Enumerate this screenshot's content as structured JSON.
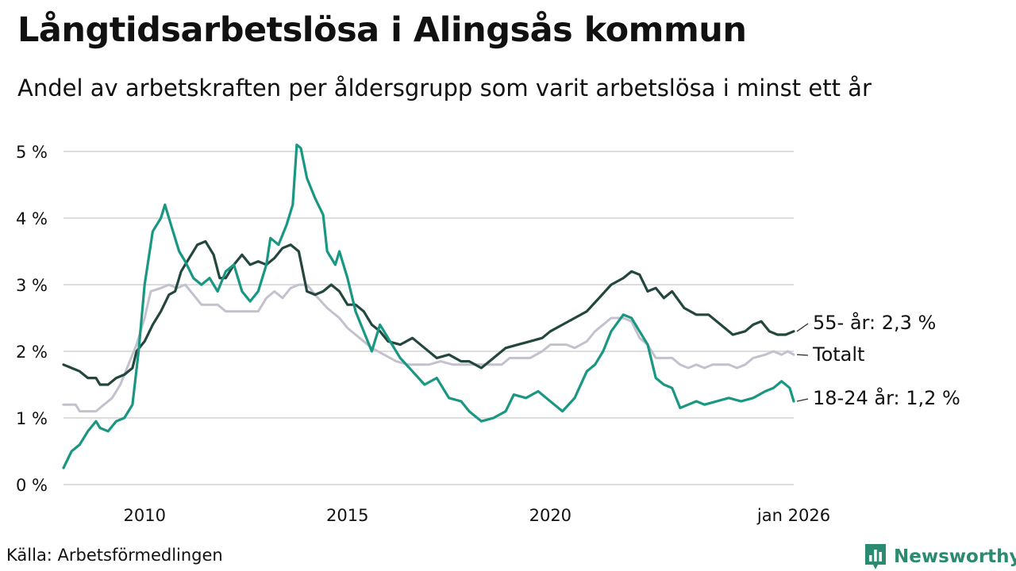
{
  "title": "Långtidsarbetslösa i Alingsås kommun",
  "subtitle": "Andel av arbetskraften per åldersgrupp som varit arbetslösa i minst ett år",
  "source": "Källa: Arbetsförmedlingen",
  "brand": "Newsworthy",
  "colors": {
    "youth": "#1a9783",
    "senior": "#23473f",
    "total": "#c3c1cd",
    "grid": "#dddddd",
    "brand": "#2a8a72"
  },
  "chart_data": {
    "type": "line",
    "title": "Långtidsarbetslösa i Alingsås kommun",
    "xlabel": "",
    "ylabel": "",
    "xlim": [
      2008.0,
      2026.0
    ],
    "ylim": [
      0,
      5.2
    ],
    "grid": true,
    "y_ticks": [
      {
        "value": 0,
        "label": "0 %"
      },
      {
        "value": 1,
        "label": "1 %"
      },
      {
        "value": 2,
        "label": "2 %"
      },
      {
        "value": 3,
        "label": "3 %"
      },
      {
        "value": 4,
        "label": "4 %"
      },
      {
        "value": 5,
        "label": "5 %"
      }
    ],
    "x_ticks": [
      {
        "value": 2010,
        "label": "2010"
      },
      {
        "value": 2015,
        "label": "2015"
      },
      {
        "value": 2020,
        "label": "2020"
      },
      {
        "value": 2026,
        "label": "jan 2026"
      }
    ],
    "series": [
      {
        "name": "Totalt",
        "label": "Totalt",
        "color": "#c3c1cd",
        "points": [
          [
            2008.0,
            1.2
          ],
          [
            2008.3,
            1.2
          ],
          [
            2008.4,
            1.1
          ],
          [
            2008.8,
            1.1
          ],
          [
            2009.0,
            1.2
          ],
          [
            2009.2,
            1.3
          ],
          [
            2009.4,
            1.5
          ],
          [
            2009.6,
            1.8
          ],
          [
            2009.8,
            2.1
          ],
          [
            2010.0,
            2.5
          ],
          [
            2010.15,
            2.9
          ],
          [
            2010.4,
            2.95
          ],
          [
            2010.6,
            3.0
          ],
          [
            2010.8,
            2.95
          ],
          [
            2011.0,
            3.0
          ],
          [
            2011.2,
            2.85
          ],
          [
            2011.4,
            2.7
          ],
          [
            2011.8,
            2.7
          ],
          [
            2012.0,
            2.6
          ],
          [
            2012.5,
            2.6
          ],
          [
            2012.8,
            2.6
          ],
          [
            2013.0,
            2.8
          ],
          [
            2013.2,
            2.9
          ],
          [
            2013.4,
            2.8
          ],
          [
            2013.6,
            2.95
          ],
          [
            2013.8,
            3.0
          ],
          [
            2014.0,
            3.0
          ],
          [
            2014.2,
            2.85
          ],
          [
            2014.5,
            2.65
          ],
          [
            2014.8,
            2.5
          ],
          [
            2015.0,
            2.35
          ],
          [
            2015.3,
            2.2
          ],
          [
            2015.6,
            2.05
          ],
          [
            2015.9,
            1.95
          ],
          [
            2016.2,
            1.85
          ],
          [
            2016.5,
            1.8
          ],
          [
            2017.0,
            1.8
          ],
          [
            2017.3,
            1.85
          ],
          [
            2017.6,
            1.8
          ],
          [
            2018.0,
            1.8
          ],
          [
            2018.5,
            1.8
          ],
          [
            2018.8,
            1.8
          ],
          [
            2019.0,
            1.9
          ],
          [
            2019.5,
            1.9
          ],
          [
            2019.8,
            2.0
          ],
          [
            2020.0,
            2.1
          ],
          [
            2020.4,
            2.1
          ],
          [
            2020.6,
            2.05
          ],
          [
            2020.9,
            2.15
          ],
          [
            2021.1,
            2.3
          ],
          [
            2021.3,
            2.4
          ],
          [
            2021.5,
            2.5
          ],
          [
            2021.8,
            2.5
          ],
          [
            2022.0,
            2.45
          ],
          [
            2022.2,
            2.2
          ],
          [
            2022.4,
            2.1
          ],
          [
            2022.6,
            1.9
          ],
          [
            2023.0,
            1.9
          ],
          [
            2023.2,
            1.8
          ],
          [
            2023.4,
            1.75
          ],
          [
            2023.6,
            1.8
          ],
          [
            2023.8,
            1.75
          ],
          [
            2024.0,
            1.8
          ],
          [
            2024.4,
            1.8
          ],
          [
            2024.6,
            1.75
          ],
          [
            2024.8,
            1.8
          ],
          [
            2025.0,
            1.9
          ],
          [
            2025.3,
            1.95
          ],
          [
            2025.5,
            2.0
          ],
          [
            2025.7,
            1.95
          ],
          [
            2025.85,
            2.0
          ],
          [
            2026.0,
            1.95
          ]
        ]
      },
      {
        "name": "55- år",
        "label": "55- år: 2,3 %",
        "color": "#23473f",
        "points": [
          [
            2008.0,
            1.8
          ],
          [
            2008.2,
            1.75
          ],
          [
            2008.4,
            1.7
          ],
          [
            2008.6,
            1.6
          ],
          [
            2008.8,
            1.6
          ],
          [
            2008.9,
            1.5
          ],
          [
            2009.1,
            1.5
          ],
          [
            2009.3,
            1.6
          ],
          [
            2009.5,
            1.65
          ],
          [
            2009.7,
            1.75
          ],
          [
            2009.8,
            2.0
          ],
          [
            2010.0,
            2.15
          ],
          [
            2010.2,
            2.4
          ],
          [
            2010.4,
            2.6
          ],
          [
            2010.6,
            2.85
          ],
          [
            2010.75,
            2.9
          ],
          [
            2010.9,
            3.2
          ],
          [
            2011.1,
            3.4
          ],
          [
            2011.3,
            3.6
          ],
          [
            2011.5,
            3.65
          ],
          [
            2011.7,
            3.45
          ],
          [
            2011.85,
            3.1
          ],
          [
            2012.0,
            3.1
          ],
          [
            2012.2,
            3.3
          ],
          [
            2012.4,
            3.45
          ],
          [
            2012.6,
            3.3
          ],
          [
            2012.8,
            3.35
          ],
          [
            2013.0,
            3.3
          ],
          [
            2013.2,
            3.4
          ],
          [
            2013.4,
            3.55
          ],
          [
            2013.6,
            3.6
          ],
          [
            2013.8,
            3.5
          ],
          [
            2014.0,
            2.9
          ],
          [
            2014.2,
            2.85
          ],
          [
            2014.4,
            2.9
          ],
          [
            2014.6,
            3.0
          ],
          [
            2014.8,
            2.9
          ],
          [
            2015.0,
            2.7
          ],
          [
            2015.2,
            2.7
          ],
          [
            2015.4,
            2.6
          ],
          [
            2015.6,
            2.4
          ],
          [
            2015.8,
            2.3
          ],
          [
            2016.0,
            2.15
          ],
          [
            2016.3,
            2.1
          ],
          [
            2016.6,
            2.2
          ],
          [
            2016.9,
            2.05
          ],
          [
            2017.2,
            1.9
          ],
          [
            2017.5,
            1.95
          ],
          [
            2017.8,
            1.85
          ],
          [
            2018.0,
            1.85
          ],
          [
            2018.3,
            1.75
          ],
          [
            2018.6,
            1.9
          ],
          [
            2018.9,
            2.05
          ],
          [
            2019.2,
            2.1
          ],
          [
            2019.5,
            2.15
          ],
          [
            2019.8,
            2.2
          ],
          [
            2020.0,
            2.3
          ],
          [
            2020.3,
            2.4
          ],
          [
            2020.6,
            2.5
          ],
          [
            2020.9,
            2.6
          ],
          [
            2021.2,
            2.8
          ],
          [
            2021.5,
            3.0
          ],
          [
            2021.8,
            3.1
          ],
          [
            2022.0,
            3.2
          ],
          [
            2022.2,
            3.15
          ],
          [
            2022.4,
            2.9
          ],
          [
            2022.6,
            2.95
          ],
          [
            2022.8,
            2.8
          ],
          [
            2023.0,
            2.9
          ],
          [
            2023.3,
            2.65
          ],
          [
            2023.6,
            2.55
          ],
          [
            2023.9,
            2.55
          ],
          [
            2024.2,
            2.4
          ],
          [
            2024.5,
            2.25
          ],
          [
            2024.8,
            2.3
          ],
          [
            2025.0,
            2.4
          ],
          [
            2025.2,
            2.45
          ],
          [
            2025.4,
            2.3
          ],
          [
            2025.6,
            2.25
          ],
          [
            2025.8,
            2.25
          ],
          [
            2026.0,
            2.3
          ]
        ]
      },
      {
        "name": "18-24 år",
        "label": "18-24 år: 1,2 %",
        "color": "#1a9783",
        "points": [
          [
            2008.0,
            0.25
          ],
          [
            2008.2,
            0.5
          ],
          [
            2008.4,
            0.6
          ],
          [
            2008.6,
            0.8
          ],
          [
            2008.8,
            0.95
          ],
          [
            2008.9,
            0.85
          ],
          [
            2009.1,
            0.8
          ],
          [
            2009.3,
            0.95
          ],
          [
            2009.5,
            1.0
          ],
          [
            2009.7,
            1.2
          ],
          [
            2009.85,
            2.0
          ],
          [
            2010.0,
            3.0
          ],
          [
            2010.2,
            3.8
          ],
          [
            2010.4,
            4.0
          ],
          [
            2010.5,
            4.2
          ],
          [
            2010.65,
            3.9
          ],
          [
            2010.85,
            3.5
          ],
          [
            2011.0,
            3.35
          ],
          [
            2011.2,
            3.1
          ],
          [
            2011.4,
            3.0
          ],
          [
            2011.6,
            3.1
          ],
          [
            2011.8,
            2.9
          ],
          [
            2012.0,
            3.2
          ],
          [
            2012.2,
            3.3
          ],
          [
            2012.4,
            2.9
          ],
          [
            2012.6,
            2.75
          ],
          [
            2012.8,
            2.9
          ],
          [
            2013.0,
            3.3
          ],
          [
            2013.1,
            3.7
          ],
          [
            2013.3,
            3.6
          ],
          [
            2013.5,
            3.9
          ],
          [
            2013.65,
            4.2
          ],
          [
            2013.75,
            5.1
          ],
          [
            2013.85,
            5.05
          ],
          [
            2014.0,
            4.6
          ],
          [
            2014.2,
            4.3
          ],
          [
            2014.4,
            4.05
          ],
          [
            2014.5,
            3.5
          ],
          [
            2014.7,
            3.3
          ],
          [
            2014.8,
            3.5
          ],
          [
            2015.0,
            3.1
          ],
          [
            2015.2,
            2.6
          ],
          [
            2015.4,
            2.3
          ],
          [
            2015.6,
            2.0
          ],
          [
            2015.8,
            2.4
          ],
          [
            2016.0,
            2.2
          ],
          [
            2016.3,
            1.9
          ],
          [
            2016.6,
            1.7
          ],
          [
            2016.9,
            1.5
          ],
          [
            2017.2,
            1.6
          ],
          [
            2017.5,
            1.3
          ],
          [
            2017.8,
            1.25
          ],
          [
            2018.0,
            1.1
          ],
          [
            2018.3,
            0.95
          ],
          [
            2018.6,
            1.0
          ],
          [
            2018.9,
            1.1
          ],
          [
            2019.1,
            1.35
          ],
          [
            2019.4,
            1.3
          ],
          [
            2019.7,
            1.4
          ],
          [
            2019.9,
            1.3
          ],
          [
            2020.1,
            1.2
          ],
          [
            2020.3,
            1.1
          ],
          [
            2020.6,
            1.3
          ],
          [
            2020.9,
            1.7
          ],
          [
            2021.1,
            1.8
          ],
          [
            2021.3,
            2.0
          ],
          [
            2021.5,
            2.3
          ],
          [
            2021.8,
            2.55
          ],
          [
            2022.0,
            2.5
          ],
          [
            2022.2,
            2.3
          ],
          [
            2022.4,
            2.1
          ],
          [
            2022.6,
            1.6
          ],
          [
            2022.8,
            1.5
          ],
          [
            2023.0,
            1.45
          ],
          [
            2023.2,
            1.15
          ],
          [
            2023.4,
            1.2
          ],
          [
            2023.6,
            1.25
          ],
          [
            2023.8,
            1.2
          ],
          [
            2024.1,
            1.25
          ],
          [
            2024.4,
            1.3
          ],
          [
            2024.7,
            1.25
          ],
          [
            2025.0,
            1.3
          ],
          [
            2025.3,
            1.4
          ],
          [
            2025.5,
            1.45
          ],
          [
            2025.7,
            1.55
          ],
          [
            2025.9,
            1.45
          ],
          [
            2026.0,
            1.25
          ]
        ]
      }
    ]
  }
}
